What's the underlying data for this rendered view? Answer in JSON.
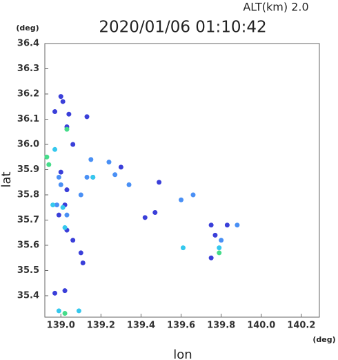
{
  "chart_data": {
    "type": "scatter",
    "title": "2020/01/06 01:10:42",
    "subtitle": "ALT(km) 2.0",
    "y_unit": "(deg)",
    "x_unit": "(deg)",
    "x_label": "lon",
    "y_label": "lat",
    "xlim": [
      138.92,
      140.29
    ],
    "ylim": [
      35.315,
      36.4
    ],
    "xticks": [
      {
        "value": 139.0,
        "label": "139.0"
      },
      139.2,
      139.4,
      139.6,
      139.8,
      {
        "value": 140.0,
        "label": "140.0"
      },
      140.2
    ],
    "yticks": [
      35.4,
      35.5,
      35.6,
      35.7,
      35.8,
      35.9,
      {
        "value": 36.0,
        "label": "36.0"
      },
      36.1,
      36.2,
      36.3,
      36.4
    ],
    "series": [
      {
        "color": "#3a3fd9",
        "x": [
          139.0,
          139.01,
          138.97,
          139.04,
          139.06,
          139.03,
          139.0,
          139.03,
          139.02,
          138.99,
          139.03,
          139.06,
          139.1,
          139.11,
          139.02,
          138.97,
          139.16,
          139.3,
          139.49,
          139.42,
          139.75,
          139.75,
          139.83,
          139.77,
          139.47,
          139.13
        ],
        "values": [
          36.19,
          36.17,
          36.13,
          36.12,
          36.0,
          36.07,
          35.89,
          35.82,
          35.76,
          35.72,
          35.66,
          35.62,
          35.57,
          35.53,
          35.42,
          35.41,
          35.87,
          35.91,
          35.85,
          35.71,
          35.55,
          35.68,
          35.68,
          35.64,
          35.73,
          36.11
        ]
      },
      {
        "color": "#4a90f5",
        "x": [
          138.99,
          138.98,
          139.03,
          139.0,
          139.1,
          139.27,
          139.34,
          139.6,
          139.66,
          139.15,
          139.24,
          139.88,
          139.8,
          139.13
        ],
        "values": [
          35.87,
          35.76,
          35.72,
          35.84,
          35.8,
          35.88,
          35.84,
          35.78,
          35.8,
          35.94,
          35.93,
          35.68,
          35.62,
          35.87
        ]
      },
      {
        "color": "#35c8ee",
        "x": [
          138.96,
          139.01,
          139.02,
          138.99,
          139.09,
          139.61,
          139.79,
          138.97,
          139.16
        ],
        "values": [
          35.76,
          35.75,
          35.67,
          35.34,
          35.34,
          35.59,
          35.59,
          35.98,
          35.87
        ]
      },
      {
        "color": "#45dc8a",
        "x": [
          138.93,
          138.94,
          139.03,
          139.02,
          139.79
        ],
        "values": [
          35.95,
          35.92,
          36.06,
          35.33,
          35.57
        ]
      }
    ]
  }
}
